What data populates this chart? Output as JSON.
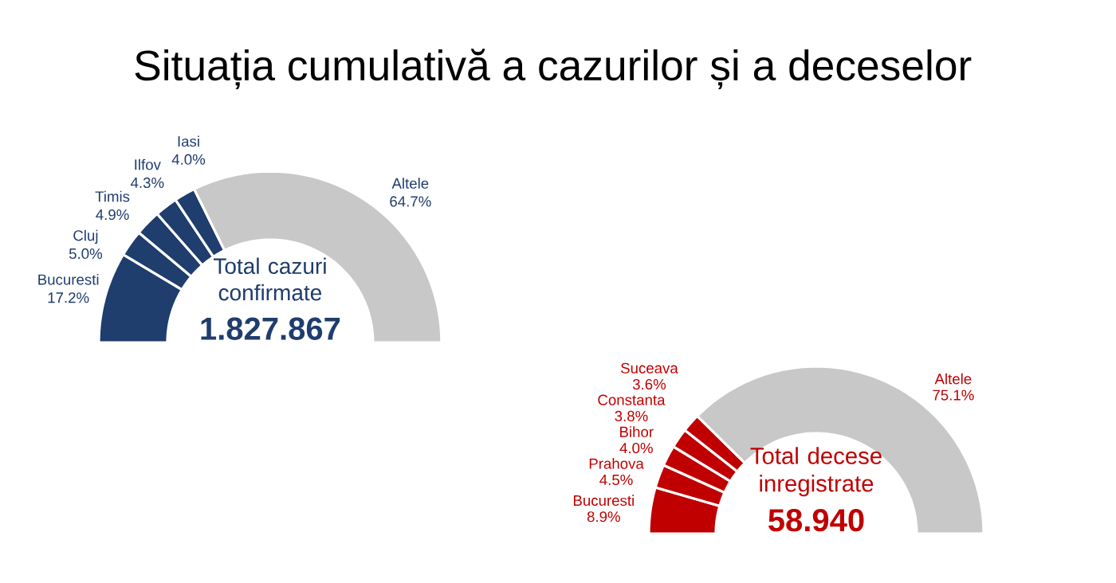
{
  "chart_data": [
    {
      "type": "donut",
      "title": "Situația cumulativă a cazurilor și a deceselor",
      "categories": [
        "Bucuresti",
        "Cluj",
        "Timis",
        "Ilfov",
        "Iasi",
        "Altele"
      ],
      "values": [
        17.2,
        5.0,
        4.9,
        4.3,
        4.0,
        64.7
      ],
      "value_labels": [
        "17.2%",
        "5.0%",
        "4.9%",
        "4.3%",
        "4.0%",
        "64.7%"
      ],
      "colors": [
        "#1f3d6d",
        "#1f3d6d",
        "#1f3d6d",
        "#1f3d6d",
        "#1f3d6d",
        "#c8c8c8"
      ],
      "annotations": [
        "Total cazuri confirmate",
        "1.827.867"
      ]
    },
    {
      "type": "donut",
      "categories": [
        "Bucuresti",
        "Prahova",
        "Bihor",
        "Constanta",
        "Suceava",
        "Altele"
      ],
      "values": [
        8.9,
        4.5,
        4.0,
        3.8,
        3.6,
        75.1
      ],
      "value_labels": [
        "8.9%",
        "4.5%",
        "4.0%",
        "3.8%",
        "3.6%",
        "75.1%"
      ],
      "colors": [
        "#c00000",
        "#c00000",
        "#c00000",
        "#c00000",
        "#c00000",
        "#c8c8c8"
      ],
      "annotations": [
        "Total decese inregistrate",
        "58.940"
      ]
    }
  ]
}
